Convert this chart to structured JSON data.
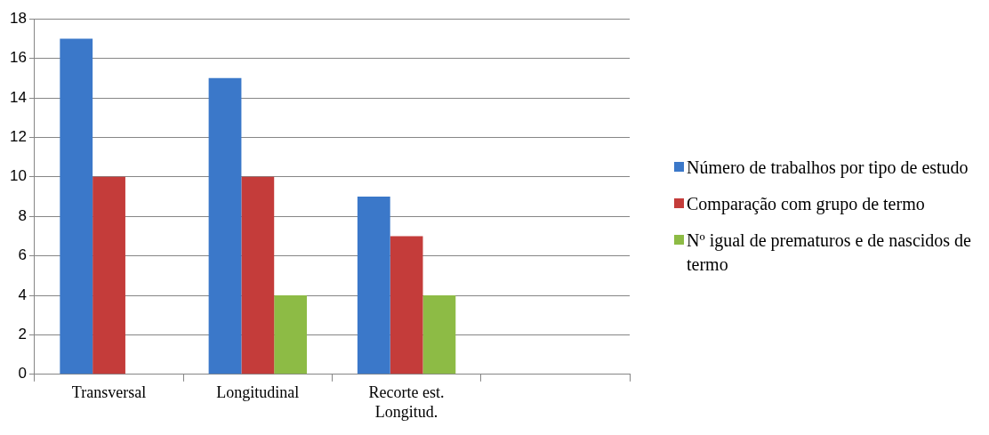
{
  "chart_data": {
    "type": "bar",
    "categories": [
      "Transversal",
      "Longitudinal",
      "Recorte est. Longitud.",
      null
    ],
    "series": [
      {
        "name": "Número de trabalhos por tipo de estudo",
        "color": "#3b78c9",
        "values": [
          17,
          15,
          9,
          null
        ]
      },
      {
        "name": "Comparação com grupo de termo",
        "color": "#c43c3a",
        "values": [
          10,
          10,
          7,
          null
        ]
      },
      {
        "name": "Nº igual de prematuros e de nascidos de termo",
        "color": "#8dbb45",
        "values": [
          null,
          4,
          4,
          null
        ]
      }
    ],
    "ylim": [
      0,
      18
    ],
    "yticks": [
      0,
      2,
      4,
      6,
      8,
      10,
      12,
      14,
      16,
      18
    ],
    "grid": "y",
    "legend": "right"
  }
}
